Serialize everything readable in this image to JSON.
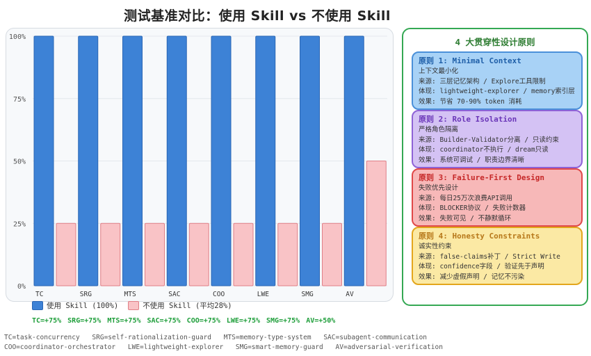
{
  "title": "测试基准对比：使用 Skill vs 不使用 Skill",
  "chart_data": {
    "type": "bar",
    "categories": [
      "TC",
      "SRG",
      "MTS",
      "SAC",
      "COO",
      "LWE",
      "SMG",
      "AV"
    ],
    "series": [
      {
        "name": "使用 Skill (100%)",
        "color": "#3d82d6",
        "values": [
          100,
          100,
          100,
          100,
          100,
          100,
          100,
          100
        ]
      },
      {
        "name": "不使用 Skill (平均28%)",
        "color": "#f9c3c6",
        "values": [
          25,
          25,
          25,
          25,
          25,
          25,
          25,
          50
        ]
      }
    ],
    "ylim": [
      0,
      100
    ],
    "yticks": [
      "0%",
      "25%",
      "50%",
      "75%",
      "100%"
    ],
    "deltas": [
      "TC=+75%",
      "SRG=+75%",
      "MTS=+75%",
      "SAC=+75%",
      "COO=+75%",
      "LWE=+75%",
      "SMG=+75%",
      "AV=+50%"
    ]
  },
  "legend": {
    "with_skill": "使用 Skill (100%)",
    "without_skill": "不使用 Skill (平均28%)",
    "with_color": "#3d82d6",
    "without_color": "#f9c3c6"
  },
  "footnotes": {
    "line1": [
      "TC=task-concurrency",
      "SRG=self-rationalization-guard",
      "MTS=memory-type-system",
      "SAC=subagent-communication"
    ],
    "line2": [
      "COO=coordinator-orchestrator",
      "LWE=lightweight-explorer",
      "SMG=smart-memory-guard",
      "AV=adversarial-verification"
    ]
  },
  "principles": {
    "title": "4 大贯穿性设计原则",
    "cards": [
      {
        "title": "原则 1: Minimal Context",
        "subtitle": "上下文最小化",
        "source": "来源: 三层记忆架构 / Explore工具限制",
        "embodiment": "体现: lightweight-explorer / memory索引层",
        "effect": "效果: 节省 70-90% token 消耗"
      },
      {
        "title": "原则 2: Role Isolation",
        "subtitle": "严格角色隔离",
        "source": "来源: Builder-Validator分离 / 只读约束",
        "embodiment": "体现: coordinator不执行 / dream只读",
        "effect": "效果: 系统可调试 / 职责边界清晰"
      },
      {
        "title": "原则 3: Failure-First Design",
        "subtitle": "失败优先设计",
        "source": "来源: 每日25万次浪费API调用",
        "embodiment": "体现: BLOCKER协议 / 失败计数器",
        "effect": "效果: 失败可见 / 不静默循环"
      },
      {
        "title": "原则 4: Honesty Constraints",
        "subtitle": "诚实性约束",
        "source": "来源: false-claims补丁 / Strict Write",
        "embodiment": "体现: confidence字段 / 验证先于声明",
        "effect": "效果: 减少虚假声明 / 记忆不污染"
      }
    ]
  }
}
